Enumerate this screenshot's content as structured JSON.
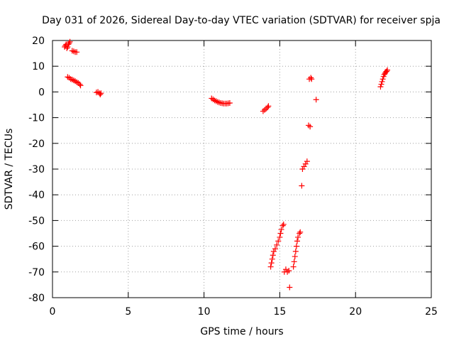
{
  "chart_data": {
    "type": "scatter",
    "title": "Day 031 of 2026, Sidereal Day-to-day VTEC variation (SDTVAR) for receiver spja",
    "xlabel": "GPS time / hours",
    "ylabel": "SDTVAR / TECUs",
    "xlim": [
      0,
      25
    ],
    "ylim": [
      -80,
      20
    ],
    "xticks": [
      0,
      5,
      10,
      15,
      20,
      25
    ],
    "yticks": [
      -80,
      -70,
      -60,
      -50,
      -40,
      -30,
      -20,
      -10,
      0,
      10,
      20
    ],
    "xtick_labels": [
      "0",
      "5",
      "10",
      "15",
      "20",
      "25"
    ],
    "ytick_labels": [
      "-80",
      "-70",
      "-60",
      "-50",
      "-40",
      "-30",
      "-20",
      "-10",
      "0",
      "10",
      "20"
    ],
    "grid": true,
    "legend": "none",
    "marker": "plus",
    "color": "#ff0000",
    "series": [
      {
        "points": [
          [
            0.8,
            17.5
          ],
          [
            0.85,
            18.0
          ],
          [
            0.9,
            18.5
          ],
          [
            0.95,
            17.0
          ],
          [
            1.0,
            17.5
          ],
          [
            1.05,
            18.5
          ],
          [
            1.1,
            19.0
          ],
          [
            1.15,
            19.5
          ]
        ]
      },
      {
        "points": [
          [
            1.3,
            16.0
          ],
          [
            1.4,
            15.8
          ],
          [
            1.5,
            15.5
          ],
          [
            1.6,
            15.5
          ]
        ]
      },
      {
        "points": [
          [
            1.0,
            5.8
          ],
          [
            1.1,
            5.5
          ],
          [
            1.2,
            5.0
          ],
          [
            1.3,
            4.8
          ],
          [
            1.4,
            4.5
          ],
          [
            1.5,
            4.2
          ],
          [
            1.6,
            3.8
          ],
          [
            1.7,
            3.5
          ],
          [
            1.8,
            3.0
          ],
          [
            1.85,
            2.5
          ]
        ]
      },
      {
        "points": [
          [
            2.9,
            -0.2
          ],
          [
            3.0,
            0.0
          ],
          [
            3.1,
            -0.5
          ],
          [
            3.15,
            -1.0
          ],
          [
            3.2,
            -0.5
          ]
        ]
      },
      {
        "points": [
          [
            10.5,
            -2.5
          ],
          [
            10.6,
            -2.9
          ],
          [
            10.7,
            -3.3
          ],
          [
            10.8,
            -3.6
          ],
          [
            10.9,
            -3.9
          ],
          [
            11.0,
            -4.1
          ],
          [
            11.1,
            -4.3
          ],
          [
            11.2,
            -4.4
          ],
          [
            11.3,
            -4.5
          ],
          [
            11.4,
            -4.5
          ],
          [
            11.5,
            -4.5
          ],
          [
            11.6,
            -4.4
          ],
          [
            11.7,
            -4.3
          ]
        ]
      },
      {
        "points": [
          [
            13.9,
            -7.5
          ],
          [
            14.0,
            -7.0
          ],
          [
            14.1,
            -6.5
          ],
          [
            14.2,
            -6.0
          ],
          [
            14.25,
            -5.5
          ]
        ]
      },
      {
        "points": [
          [
            14.4,
            -68.0
          ],
          [
            14.45,
            -66.5
          ],
          [
            14.5,
            -65.0
          ],
          [
            14.55,
            -63.5
          ],
          [
            14.6,
            -62.0
          ],
          [
            14.7,
            -61.0
          ],
          [
            14.8,
            -59.5
          ],
          [
            14.9,
            -58.0
          ],
          [
            15.0,
            -56.5
          ],
          [
            15.05,
            -55.0
          ],
          [
            15.1,
            -53.5
          ],
          [
            15.2,
            -52.0
          ],
          [
            15.25,
            -51.5
          ]
        ]
      },
      {
        "points": [
          [
            15.3,
            -70.0
          ],
          [
            15.4,
            -69.0
          ],
          [
            15.5,
            -70.0
          ],
          [
            15.6,
            -69.5
          ]
        ]
      },
      {
        "points": [
          [
            15.65,
            -76.0
          ]
        ]
      },
      {
        "points": [
          [
            15.9,
            -68.0
          ],
          [
            15.95,
            -66.0
          ],
          [
            16.0,
            -64.0
          ],
          [
            16.05,
            -62.0
          ],
          [
            16.1,
            -60.0
          ],
          [
            16.15,
            -58.0
          ],
          [
            16.2,
            -56.5
          ],
          [
            16.3,
            -55.0
          ],
          [
            16.35,
            -54.5
          ]
        ]
      },
      {
        "points": [
          [
            16.45,
            -36.5
          ]
        ]
      },
      {
        "points": [
          [
            16.5,
            -30.0
          ],
          [
            16.6,
            -29.0
          ],
          [
            16.7,
            -28.0
          ],
          [
            16.8,
            -27.0
          ]
        ]
      },
      {
        "points": [
          [
            16.9,
            -13.0
          ],
          [
            17.0,
            -13.5
          ]
        ]
      },
      {
        "points": [
          [
            16.95,
            5.0
          ],
          [
            17.05,
            5.5
          ],
          [
            17.1,
            5.0
          ]
        ]
      },
      {
        "points": [
          [
            17.4,
            -3.0
          ]
        ]
      },
      {
        "points": [
          [
            21.65,
            2.0
          ],
          [
            21.7,
            3.0
          ],
          [
            21.75,
            4.0
          ],
          [
            21.8,
            5.0
          ],
          [
            21.85,
            6.0
          ],
          [
            21.9,
            6.8
          ],
          [
            21.95,
            7.3
          ],
          [
            22.0,
            7.8
          ],
          [
            22.05,
            8.0
          ],
          [
            22.1,
            8.5
          ]
        ]
      }
    ]
  }
}
